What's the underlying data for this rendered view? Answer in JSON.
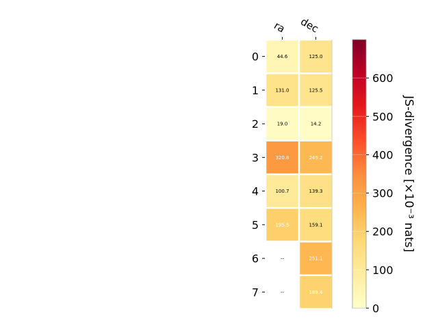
{
  "chart_data": {
    "type": "heatmap",
    "title": "",
    "columns": [
      "ra",
      "dec"
    ],
    "rows": [
      "0",
      "1",
      "2",
      "3",
      "4",
      "5",
      "6",
      "7"
    ],
    "values": [
      [
        44.6,
        125.0
      ],
      [
        131.0,
        125.5
      ],
      [
        19.0,
        14.2
      ],
      [
        320.8,
        249.2
      ],
      [
        100.7,
        139.3
      ],
      [
        195.5,
        159.1
      ],
      [
        null,
        251.1
      ],
      [
        null,
        189.4
      ]
    ],
    "cell_labels": [
      [
        "44.6",
        "125.0"
      ],
      [
        "131.0",
        "125.5"
      ],
      [
        "19.0",
        "14.2"
      ],
      [
        "320.8",
        "249.2"
      ],
      [
        "100.7",
        "139.3"
      ],
      [
        "195.5",
        "159.1"
      ],
      [
        "--",
        "251.1"
      ],
      [
        "--",
        "189.4"
      ]
    ],
    "colorbar": {
      "label": "JS-divergence [×10⁻³ nats]",
      "colormap": "YlOrRd",
      "range": [
        0,
        700
      ],
      "ticks": [
        0,
        100,
        200,
        300,
        400,
        500,
        600
      ],
      "tick_labels": [
        "0",
        "100",
        "200",
        "300",
        "400",
        "500",
        "600"
      ]
    },
    "missing_color": "#ffffff"
  }
}
